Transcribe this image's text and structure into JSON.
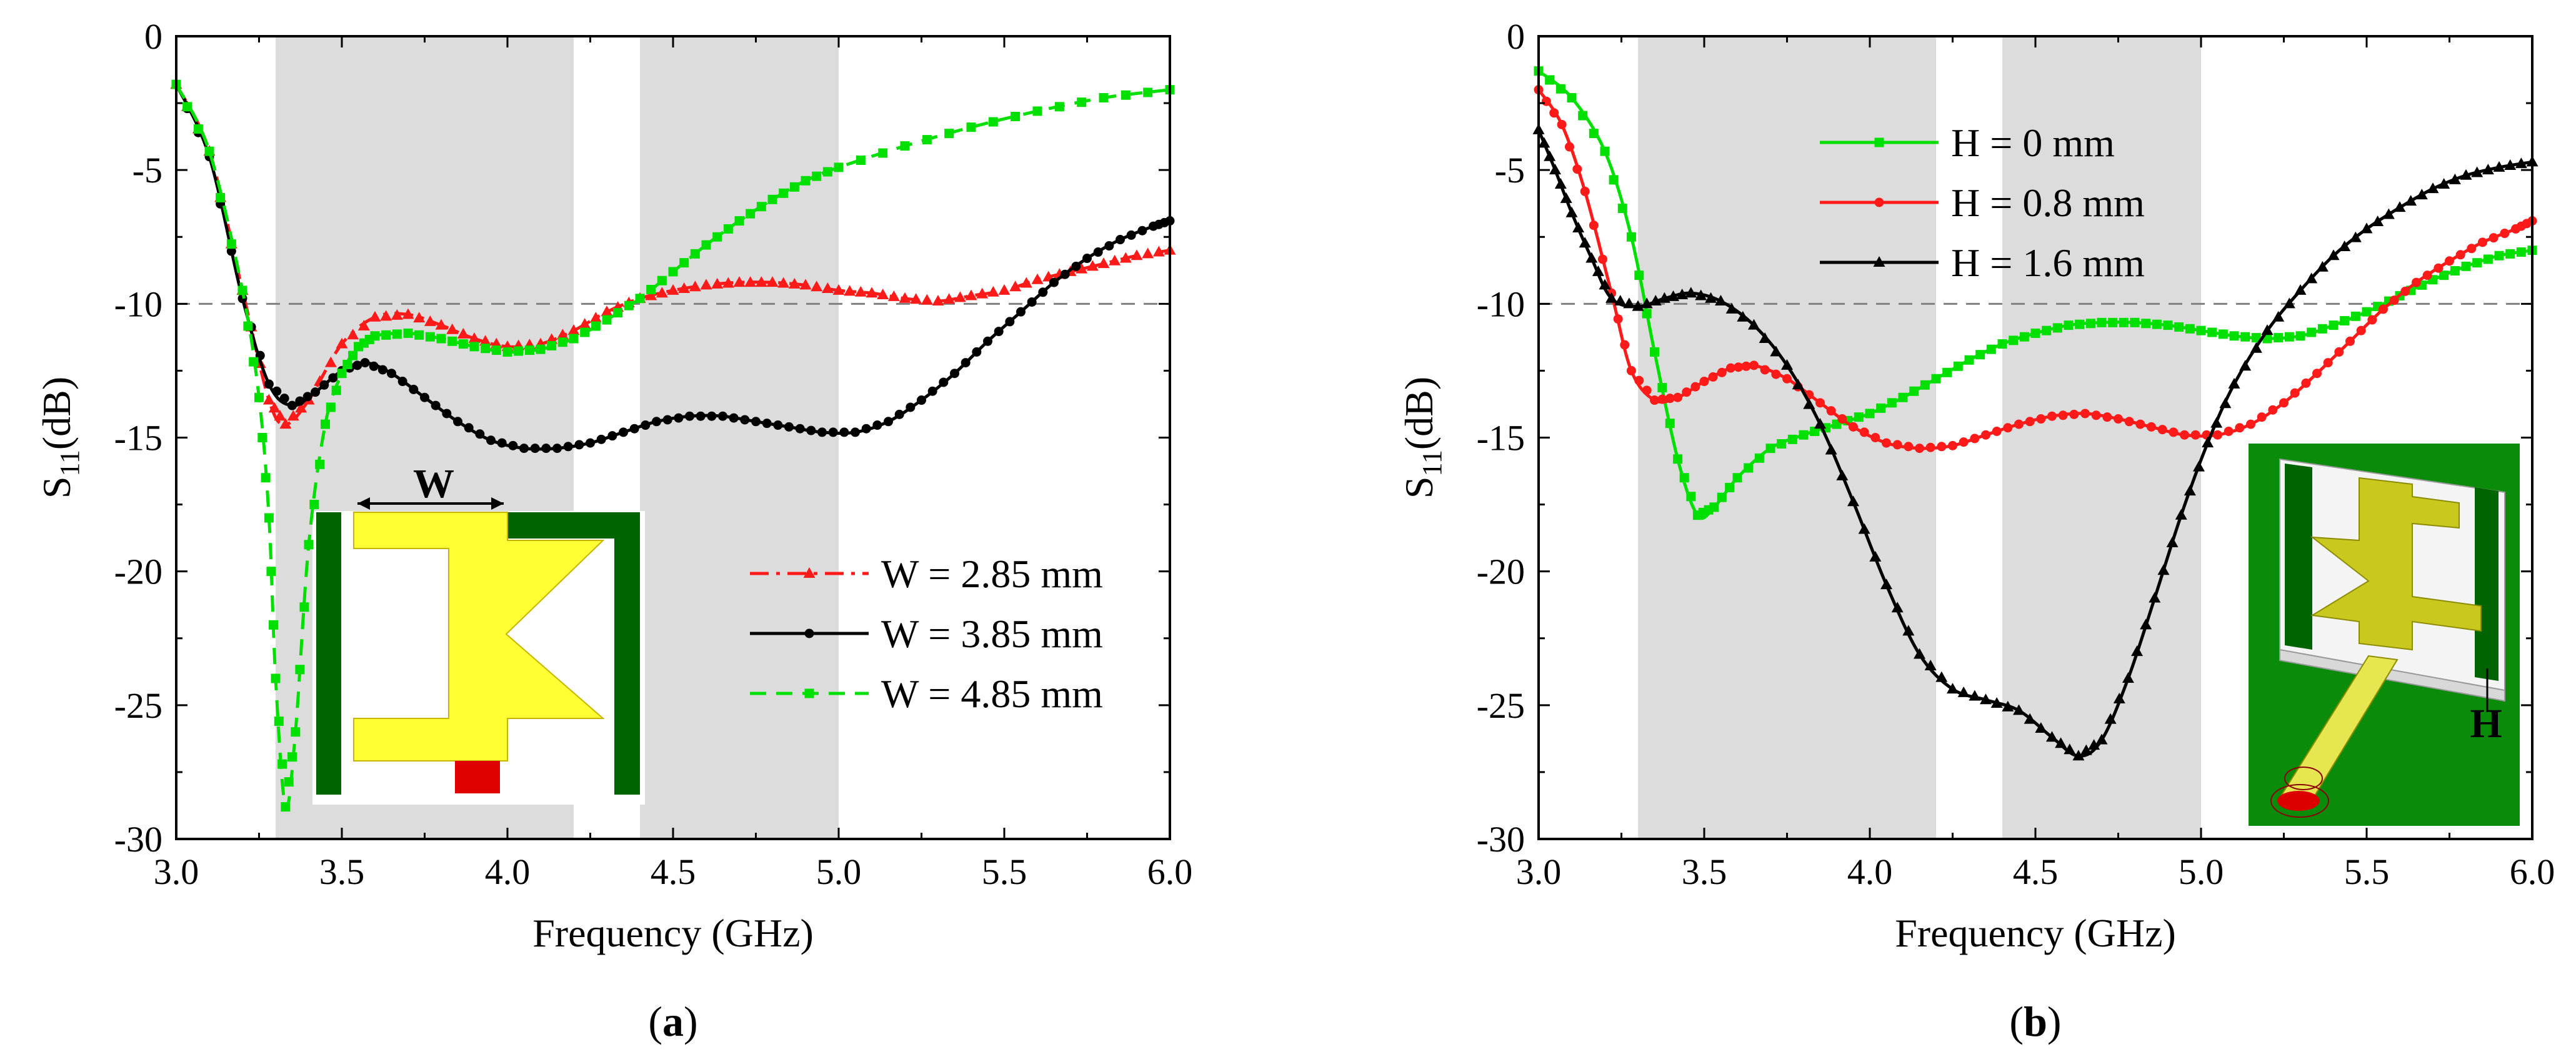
{
  "chart_data": [
    {
      "type": "line",
      "panel_label": "a",
      "xlabel": "Frequency (GHz)",
      "ylabel_main": "S",
      "ylabel_sub": "11",
      "ylabel_unit": "(dB)",
      "xlim": [
        3.0,
        6.0
      ],
      "ylim": [
        -30,
        0
      ],
      "x_ticks": [
        3.0,
        3.5,
        4.0,
        4.5,
        5.0,
        5.5,
        6.0
      ],
      "x_tick_labels": [
        "3.0",
        "3.5",
        "4.0",
        "4.5",
        "5.0",
        "5.5",
        "6.0"
      ],
      "y_ticks": [
        0,
        -5,
        -10,
        -15,
        -20,
        -25,
        -30
      ],
      "y_tick_labels": [
        "0",
        "-5",
        "-10",
        "-15",
        "-20",
        "-25",
        "-30"
      ],
      "reference_line_y": -10,
      "shaded_bands": [
        [
          3.3,
          4.2
        ],
        [
          4.4,
          5.0
        ]
      ],
      "inset_label": "W",
      "legend_position": "lower-right",
      "series": [
        {
          "name": "W = 2.85 mm",
          "color": "#ff1a1a",
          "dash": "dashdot",
          "marker": "triangle",
          "points": [
            [
              3.0,
              -1.8
            ],
            [
              3.1,
              -4.3
            ],
            [
              3.2,
              -9.5
            ],
            [
              3.28,
              -13.6
            ],
            [
              3.33,
              -14.5
            ],
            [
              3.4,
              -13.6
            ],
            [
              3.5,
              -11.5
            ],
            [
              3.6,
              -10.5
            ],
            [
              3.7,
              -10.4
            ],
            [
              3.8,
              -10.8
            ],
            [
              3.9,
              -11.3
            ],
            [
              4.0,
              -11.6
            ],
            [
              4.1,
              -11.5
            ],
            [
              4.2,
              -11.0
            ],
            [
              4.3,
              -10.3
            ],
            [
              4.4,
              -9.8
            ],
            [
              4.5,
              -9.5
            ],
            [
              4.6,
              -9.3
            ],
            [
              4.7,
              -9.2
            ],
            [
              4.8,
              -9.2
            ],
            [
              4.9,
              -9.3
            ],
            [
              5.0,
              -9.5
            ],
            [
              5.1,
              -9.6
            ],
            [
              5.2,
              -9.8
            ],
            [
              5.3,
              -9.9
            ],
            [
              5.4,
              -9.7
            ],
            [
              5.5,
              -9.5
            ],
            [
              5.6,
              -9.1
            ],
            [
              5.7,
              -8.8
            ],
            [
              5.8,
              -8.5
            ],
            [
              5.9,
              -8.2
            ],
            [
              6.0,
              -8.0
            ]
          ]
        },
        {
          "name": "W = 3.85 mm",
          "color": "#000000",
          "dash": "solid",
          "marker": "circle",
          "points": [
            [
              3.0,
              -1.8
            ],
            [
              3.1,
              -4.5
            ],
            [
              3.2,
              -9.8
            ],
            [
              3.28,
              -13.0
            ],
            [
              3.35,
              -13.8
            ],
            [
              3.42,
              -13.3
            ],
            [
              3.5,
              -12.5
            ],
            [
              3.57,
              -12.2
            ],
            [
              3.65,
              -12.6
            ],
            [
              3.75,
              -13.5
            ],
            [
              3.85,
              -14.4
            ],
            [
              3.95,
              -15.1
            ],
            [
              4.05,
              -15.4
            ],
            [
              4.15,
              -15.4
            ],
            [
              4.25,
              -15.2
            ],
            [
              4.35,
              -14.8
            ],
            [
              4.45,
              -14.4
            ],
            [
              4.55,
              -14.2
            ],
            [
              4.65,
              -14.2
            ],
            [
              4.75,
              -14.4
            ],
            [
              4.85,
              -14.6
            ],
            [
              4.95,
              -14.8
            ],
            [
              5.05,
              -14.8
            ],
            [
              5.15,
              -14.4
            ],
            [
              5.25,
              -13.6
            ],
            [
              5.35,
              -12.6
            ],
            [
              5.45,
              -11.4
            ],
            [
              5.55,
              -10.3
            ],
            [
              5.65,
              -9.2
            ],
            [
              5.75,
              -8.3
            ],
            [
              5.85,
              -7.6
            ],
            [
              5.95,
              -7.1
            ],
            [
              6.0,
              -6.9
            ]
          ]
        },
        {
          "name": "W = 4.85 mm",
          "color": "#00e000",
          "dash": "dashed",
          "marker": "square",
          "points": [
            [
              3.0,
              -1.8
            ],
            [
              3.1,
              -4.3
            ],
            [
              3.2,
              -9.5
            ],
            [
              3.25,
              -13.5
            ],
            [
              3.28,
              -18.0
            ],
            [
              3.3,
              -24.0
            ],
            [
              3.33,
              -28.8
            ],
            [
              3.36,
              -26.0
            ],
            [
              3.4,
              -19.0
            ],
            [
              3.45,
              -14.5
            ],
            [
              3.5,
              -12.6
            ],
            [
              3.55,
              -11.6
            ],
            [
              3.6,
              -11.2
            ],
            [
              3.7,
              -11.1
            ],
            [
              3.8,
              -11.3
            ],
            [
              3.9,
              -11.6
            ],
            [
              4.0,
              -11.8
            ],
            [
              4.1,
              -11.7
            ],
            [
              4.2,
              -11.3
            ],
            [
              4.3,
              -10.6
            ],
            [
              4.4,
              -9.8
            ],
            [
              4.5,
              -8.8
            ],
            [
              4.6,
              -7.8
            ],
            [
              4.7,
              -6.9
            ],
            [
              4.8,
              -6.1
            ],
            [
              4.9,
              -5.4
            ],
            [
              5.0,
              -4.9
            ],
            [
              5.2,
              -4.1
            ],
            [
              5.4,
              -3.4
            ],
            [
              5.6,
              -2.8
            ],
            [
              5.8,
              -2.3
            ],
            [
              6.0,
              -2.0
            ]
          ]
        }
      ]
    },
    {
      "type": "line",
      "panel_label": "b",
      "xlabel": "Frequency (GHz)",
      "ylabel_main": "S",
      "ylabel_sub": "11",
      "ylabel_unit": "(dB)",
      "xlim": [
        3.0,
        6.0
      ],
      "ylim": [
        -30,
        0
      ],
      "x_ticks": [
        3.0,
        3.5,
        4.0,
        4.5,
        5.0,
        5.5,
        6.0
      ],
      "x_tick_labels": [
        "3.0",
        "3.5",
        "4.0",
        "4.5",
        "5.0",
        "5.5",
        "6.0"
      ],
      "y_ticks": [
        0,
        -5,
        -10,
        -15,
        -20,
        -25,
        -30
      ],
      "y_tick_labels": [
        "0",
        "-5",
        "-10",
        "-15",
        "-20",
        "-25",
        "-30"
      ],
      "reference_line_y": -10,
      "shaded_bands": [
        [
          3.3,
          4.2
        ],
        [
          4.4,
          5.0
        ]
      ],
      "inset_label": "H",
      "legend_position": "top-left",
      "series": [
        {
          "name": "H = 0 mm",
          "color": "#00e000",
          "dash": "solid",
          "marker": "square",
          "points": [
            [
              3.0,
              -1.3
            ],
            [
              3.1,
              -2.3
            ],
            [
              3.2,
              -4.3
            ],
            [
              3.28,
              -7.5
            ],
            [
              3.35,
              -11.8
            ],
            [
              3.42,
              -15.8
            ],
            [
              3.48,
              -17.9
            ],
            [
              3.53,
              -17.6
            ],
            [
              3.6,
              -16.5
            ],
            [
              3.7,
              -15.4
            ],
            [
              3.8,
              -14.9
            ],
            [
              3.9,
              -14.5
            ],
            [
              4.0,
              -14.1
            ],
            [
              4.1,
              -13.5
            ],
            [
              4.2,
              -12.8
            ],
            [
              4.3,
              -12.1
            ],
            [
              4.4,
              -11.5
            ],
            [
              4.5,
              -11.1
            ],
            [
              4.6,
              -10.8
            ],
            [
              4.7,
              -10.7
            ],
            [
              4.8,
              -10.7
            ],
            [
              4.9,
              -10.8
            ],
            [
              5.0,
              -11.0
            ],
            [
              5.1,
              -11.2
            ],
            [
              5.2,
              -11.3
            ],
            [
              5.3,
              -11.2
            ],
            [
              5.4,
              -10.8
            ],
            [
              5.5,
              -10.3
            ],
            [
              5.6,
              -9.7
            ],
            [
              5.7,
              -9.1
            ],
            [
              5.8,
              -8.6
            ],
            [
              5.9,
              -8.2
            ],
            [
              6.0,
              -8.0
            ]
          ]
        },
        {
          "name": "H = 0.8 mm",
          "color": "#ff1a1a",
          "dash": "solid",
          "marker": "circle",
          "points": [
            [
              3.0,
              -2.0
            ],
            [
              3.07,
              -3.3
            ],
            [
              3.14,
              -5.8
            ],
            [
              3.22,
              -9.6
            ],
            [
              3.28,
              -12.5
            ],
            [
              3.35,
              -13.6
            ],
            [
              3.42,
              -13.5
            ],
            [
              3.5,
              -12.9
            ],
            [
              3.58,
              -12.4
            ],
            [
              3.65,
              -12.3
            ],
            [
              3.75,
              -12.8
            ],
            [
              3.85,
              -13.7
            ],
            [
              3.95,
              -14.6
            ],
            [
              4.05,
              -15.2
            ],
            [
              4.15,
              -15.4
            ],
            [
              4.25,
              -15.3
            ],
            [
              4.35,
              -14.9
            ],
            [
              4.45,
              -14.5
            ],
            [
              4.55,
              -14.2
            ],
            [
              4.65,
              -14.1
            ],
            [
              4.75,
              -14.3
            ],
            [
              4.85,
              -14.6
            ],
            [
              4.95,
              -14.9
            ],
            [
              5.05,
              -14.9
            ],
            [
              5.15,
              -14.5
            ],
            [
              5.25,
              -13.7
            ],
            [
              5.35,
              -12.6
            ],
            [
              5.45,
              -11.4
            ],
            [
              5.55,
              -10.2
            ],
            [
              5.65,
              -9.2
            ],
            [
              5.75,
              -8.4
            ],
            [
              5.85,
              -7.7
            ],
            [
              5.95,
              -7.2
            ],
            [
              6.0,
              -6.9
            ]
          ]
        },
        {
          "name": "H = 1.6 mm",
          "color": "#000000",
          "dash": "solid",
          "marker": "triangle",
          "points": [
            [
              3.0,
              -3.5
            ],
            [
              3.05,
              -5.0
            ],
            [
              3.1,
              -6.6
            ],
            [
              3.16,
              -8.3
            ],
            [
              3.22,
              -9.8
            ],
            [
              3.3,
              -10.1
            ],
            [
              3.38,
              -9.8
            ],
            [
              3.46,
              -9.6
            ],
            [
              3.55,
              -9.9
            ],
            [
              3.65,
              -10.8
            ],
            [
              3.75,
              -12.3
            ],
            [
              3.85,
              -14.5
            ],
            [
              3.95,
              -17.4
            ],
            [
              4.05,
              -20.5
            ],
            [
              4.15,
              -23.1
            ],
            [
              4.25,
              -24.4
            ],
            [
              4.35,
              -24.8
            ],
            [
              4.45,
              -25.2
            ],
            [
              4.55,
              -26.2
            ],
            [
              4.63,
              -26.9
            ],
            [
              4.7,
              -26.3
            ],
            [
              4.78,
              -24.0
            ],
            [
              4.86,
              -21.0
            ],
            [
              4.94,
              -17.9
            ],
            [
              5.02,
              -15.2
            ],
            [
              5.1,
              -13.0
            ],
            [
              5.2,
              -11.0
            ],
            [
              5.3,
              -9.5
            ],
            [
              5.4,
              -8.2
            ],
            [
              5.5,
              -7.2
            ],
            [
              5.6,
              -6.4
            ],
            [
              5.7,
              -5.7
            ],
            [
              5.8,
              -5.2
            ],
            [
              5.9,
              -4.9
            ],
            [
              6.0,
              -4.7
            ]
          ]
        }
      ]
    }
  ]
}
